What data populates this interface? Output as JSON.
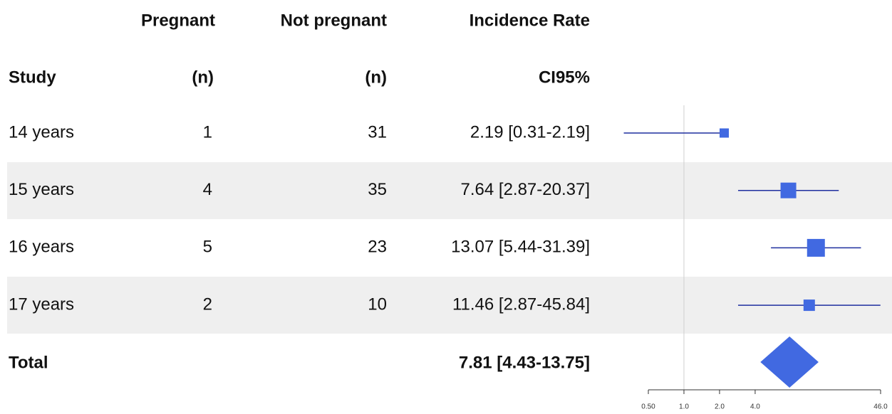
{
  "chart_data": {
    "type": "forest",
    "headers": {
      "study": "Study",
      "pregnant": [
        "Pregnant",
        "(n)"
      ],
      "not_pregnant": [
        "Not pregnant",
        "(n)"
      ],
      "rate": [
        "Incidence Rate",
        "CI95%"
      ]
    },
    "rows": [
      {
        "label": "14 years",
        "pregnant": 1,
        "not_pregnant": 31,
        "estimate": 2.19,
        "lower": 0.31,
        "upper": 2.19,
        "value_label": "2.19 [0.31-2.19]"
      },
      {
        "label": "15 years",
        "pregnant": 4,
        "not_pregnant": 35,
        "estimate": 7.64,
        "lower": 2.87,
        "upper": 20.37,
        "value_label": "7.64 [2.87-20.37]"
      },
      {
        "label": "16 years",
        "pregnant": 5,
        "not_pregnant": 23,
        "estimate": 13.07,
        "lower": 5.44,
        "upper": 31.39,
        "value_label": "13.07 [5.44-31.39]"
      },
      {
        "label": "17 years",
        "pregnant": 2,
        "not_pregnant": 10,
        "estimate": 11.46,
        "lower": 2.87,
        "upper": 45.84,
        "value_label": "11.46 [2.87-45.84]"
      }
    ],
    "total": {
      "label": "Total",
      "estimate": 7.81,
      "lower": 4.43,
      "upper": 13.75,
      "value_label": "7.81 [4.43-13.75]"
    },
    "xlim": [
      0.5,
      46
    ],
    "xticks": [
      {
        "value": 0.5,
        "label": "0.50"
      },
      {
        "value": 1,
        "label": "1.0"
      },
      {
        "value": 2,
        "label": "2.0"
      },
      {
        "value": 4,
        "label": "4.0"
      },
      {
        "value": 46,
        "label": "46.0"
      }
    ],
    "log_x": true,
    "null_value": 1,
    "color": "#4169e1",
    "line_color": "#1f2f9f"
  }
}
